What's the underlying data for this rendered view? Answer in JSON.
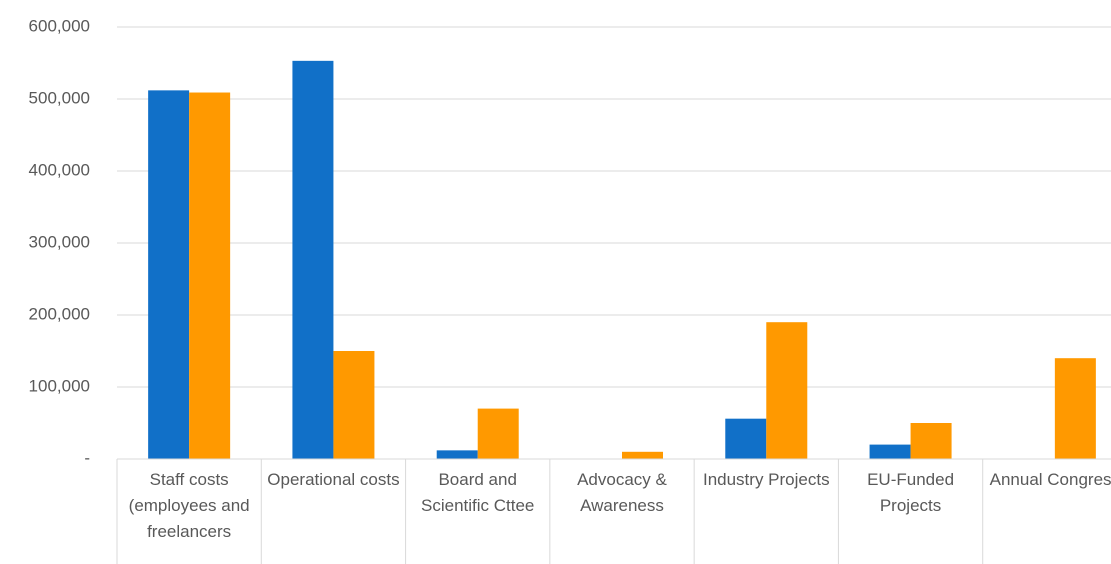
{
  "chart_data": {
    "type": "bar",
    "categories": [
      "Staff costs (employees and freelancers",
      "Operational costs",
      "Board and Scientific Cttee",
      "Advocacy & Awareness",
      "Industry Projects",
      "EU-Funded Projects",
      "Annual Congress"
    ],
    "series": [
      {
        "color": "#1170c8",
        "values": [
          512000,
          553000,
          12000,
          0,
          56000,
          20000,
          0
        ]
      },
      {
        "color": "#ff9900",
        "values": [
          509000,
          150000,
          70000,
          10000,
          190000,
          50000,
          140000
        ]
      }
    ],
    "ylim": [
      0,
      600000
    ],
    "yticks": [
      {
        "value": 0,
        "label": "-"
      },
      {
        "value": 100000,
        "label": "100,000"
      },
      {
        "value": 200000,
        "label": "200,000"
      },
      {
        "value": 300000,
        "label": "300,000"
      },
      {
        "value": 400000,
        "label": "400,000"
      },
      {
        "value": 500000,
        "label": "500,000"
      },
      {
        "value": 600000,
        "label": "600,000"
      }
    ],
    "grid": true
  }
}
